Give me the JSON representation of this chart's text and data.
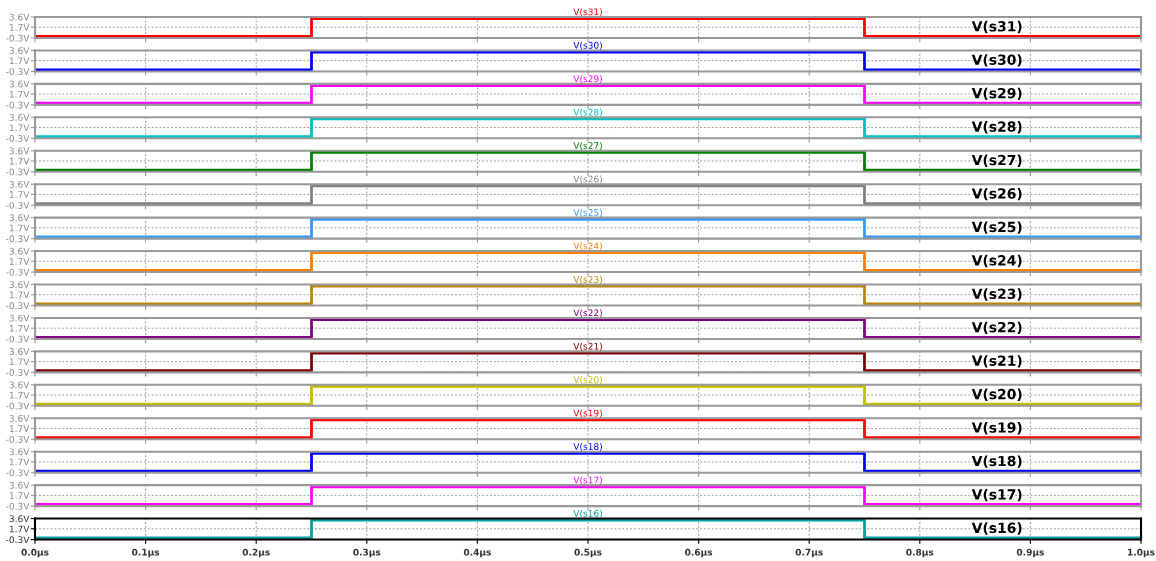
{
  "chart_data": [
    {
      "type": "line",
      "title": "V(s31)",
      "annotations": [
        "V(s31)"
      ],
      "x": [
        0,
        0.25,
        0.25,
        0.75,
        0.75,
        1.0
      ],
      "series": [
        {
          "color": "#ff0000",
          "values": [
            0,
            0,
            3.3,
            3.3,
            0,
            0
          ]
        }
      ],
      "xlim": [
        0,
        1
      ],
      "xticks": [
        {
          "value": 0,
          "label": null
        },
        {
          "value": 0.1,
          "label": null
        },
        {
          "value": 0.2,
          "label": null
        },
        {
          "value": 0.3,
          "label": null
        },
        {
          "value": 0.4,
          "label": null
        },
        {
          "value": 0.5,
          "label": null
        },
        {
          "value": 0.6,
          "label": null
        },
        {
          "value": 0.7,
          "label": null
        },
        {
          "value": 0.8,
          "label": null
        },
        {
          "value": 0.9,
          "label": null
        },
        {
          "value": 1.0,
          "label": null
        }
      ],
      "ylim": [
        -0.3,
        3.6
      ],
      "yticks": [
        {
          "value": -0.3,
          "label": "-0.3V"
        },
        {
          "value": 1.7,
          "label": "1.7V"
        },
        {
          "value": 3.6,
          "label": "3.6V"
        }
      ],
      "grid": true,
      "tick_labels": "y"
    },
    {
      "type": "line",
      "title": "V(s30)",
      "annotations": [
        "V(s30)"
      ],
      "x": [
        0,
        0.25,
        0.25,
        0.75,
        0.75,
        1.0
      ],
      "series": [
        {
          "color": "#0000ff",
          "values": [
            0,
            0,
            3.3,
            3.3,
            0,
            0
          ]
        }
      ],
      "xlim": [
        0,
        1
      ],
      "xticks": [
        {
          "value": 0,
          "label": null
        },
        {
          "value": 0.1,
          "label": null
        },
        {
          "value": 0.2,
          "label": null
        },
        {
          "value": 0.3,
          "label": null
        },
        {
          "value": 0.4,
          "label": null
        },
        {
          "value": 0.5,
          "label": null
        },
        {
          "value": 0.6,
          "label": null
        },
        {
          "value": 0.7,
          "label": null
        },
        {
          "value": 0.8,
          "label": null
        },
        {
          "value": 0.9,
          "label": null
        },
        {
          "value": 1.0,
          "label": null
        }
      ],
      "ylim": [
        -0.3,
        3.6
      ],
      "yticks": [
        {
          "value": -0.3,
          "label": "-0.3V"
        },
        {
          "value": 1.7,
          "label": "1.7V"
        },
        {
          "value": 3.6,
          "label": "3.6V"
        }
      ],
      "grid": true,
      "tick_labels": "y"
    },
    {
      "type": "line",
      "title": "V(s29)",
      "annotations": [
        "V(s29)"
      ],
      "x": [
        0,
        0.25,
        0.25,
        0.75,
        0.75,
        1.0
      ],
      "series": [
        {
          "color": "#ff00ff",
          "values": [
            0,
            0,
            3.3,
            3.3,
            0,
            0
          ]
        }
      ],
      "xlim": [
        0,
        1
      ],
      "xticks": [
        {
          "value": 0,
          "label": null
        },
        {
          "value": 0.1,
          "label": null
        },
        {
          "value": 0.2,
          "label": null
        },
        {
          "value": 0.3,
          "label": null
        },
        {
          "value": 0.4,
          "label": null
        },
        {
          "value": 0.5,
          "label": null
        },
        {
          "value": 0.6,
          "label": null
        },
        {
          "value": 0.7,
          "label": null
        },
        {
          "value": 0.8,
          "label": null
        },
        {
          "value": 0.9,
          "label": null
        },
        {
          "value": 1.0,
          "label": null
        }
      ],
      "ylim": [
        -0.3,
        3.6
      ],
      "yticks": [
        {
          "value": -0.3,
          "label": "-0.3V"
        },
        {
          "value": 1.7,
          "label": "1.7V"
        },
        {
          "value": 3.6,
          "label": "3.6V"
        }
      ],
      "grid": true,
      "tick_labels": "y"
    },
    {
      "type": "line",
      "title": "V(s28)",
      "annotations": [
        "V(s28)"
      ],
      "x": [
        0,
        0.25,
        0.25,
        0.75,
        0.75,
        1.0
      ],
      "series": [
        {
          "color": "#00bfbf",
          "values": [
            0,
            0,
            3.3,
            3.3,
            0,
            0
          ]
        }
      ],
      "xlim": [
        0,
        1
      ],
      "xticks": [
        {
          "value": 0,
          "label": null
        },
        {
          "value": 0.1,
          "label": null
        },
        {
          "value": 0.2,
          "label": null
        },
        {
          "value": 0.3,
          "label": null
        },
        {
          "value": 0.4,
          "label": null
        },
        {
          "value": 0.5,
          "label": null
        },
        {
          "value": 0.6,
          "label": null
        },
        {
          "value": 0.7,
          "label": null
        },
        {
          "value": 0.8,
          "label": null
        },
        {
          "value": 0.9,
          "label": null
        },
        {
          "value": 1.0,
          "label": null
        }
      ],
      "ylim": [
        -0.3,
        3.6
      ],
      "yticks": [
        {
          "value": -0.3,
          "label": "-0.3V"
        },
        {
          "value": 1.7,
          "label": "1.7V"
        },
        {
          "value": 3.6,
          "label": "3.6V"
        }
      ],
      "grid": true,
      "tick_labels": "y"
    },
    {
      "type": "line",
      "title": "V(s27)",
      "annotations": [
        "V(s27)"
      ],
      "x": [
        0,
        0.25,
        0.25,
        0.75,
        0.75,
        1.0
      ],
      "series": [
        {
          "color": "#008000",
          "values": [
            0,
            0,
            3.3,
            3.3,
            0,
            0
          ]
        }
      ],
      "xlim": [
        0,
        1
      ],
      "xticks": [
        {
          "value": 0,
          "label": null
        },
        {
          "value": 0.1,
          "label": null
        },
        {
          "value": 0.2,
          "label": null
        },
        {
          "value": 0.3,
          "label": null
        },
        {
          "value": 0.4,
          "label": null
        },
        {
          "value": 0.5,
          "label": null
        },
        {
          "value": 0.6,
          "label": null
        },
        {
          "value": 0.7,
          "label": null
        },
        {
          "value": 0.8,
          "label": null
        },
        {
          "value": 0.9,
          "label": null
        },
        {
          "value": 1.0,
          "label": null
        }
      ],
      "ylim": [
        -0.3,
        3.6
      ],
      "yticks": [
        {
          "value": -0.3,
          "label": "-0.3V"
        },
        {
          "value": 1.7,
          "label": "1.7V"
        },
        {
          "value": 3.6,
          "label": "3.6V"
        }
      ],
      "grid": true,
      "tick_labels": "y"
    },
    {
      "type": "line",
      "title": "V(s26)",
      "annotations": [
        "V(s26)"
      ],
      "x": [
        0,
        0.25,
        0.25,
        0.75,
        0.75,
        1.0
      ],
      "series": [
        {
          "color": "#808080",
          "values": [
            0,
            0,
            3.3,
            3.3,
            0,
            0
          ]
        }
      ],
      "xlim": [
        0,
        1
      ],
      "xticks": [
        {
          "value": 0,
          "label": null
        },
        {
          "value": 0.1,
          "label": null
        },
        {
          "value": 0.2,
          "label": null
        },
        {
          "value": 0.3,
          "label": null
        },
        {
          "value": 0.4,
          "label": null
        },
        {
          "value": 0.5,
          "label": null
        },
        {
          "value": 0.6,
          "label": null
        },
        {
          "value": 0.7,
          "label": null
        },
        {
          "value": 0.8,
          "label": null
        },
        {
          "value": 0.9,
          "label": null
        },
        {
          "value": 1.0,
          "label": null
        }
      ],
      "ylim": [
        -0.3,
        3.6
      ],
      "yticks": [
        {
          "value": -0.3,
          "label": "-0.3V"
        },
        {
          "value": 1.7,
          "label": "1.7V"
        },
        {
          "value": 3.6,
          "label": "3.6V"
        }
      ],
      "grid": true,
      "tick_labels": "y"
    },
    {
      "type": "line",
      "title": "V(s25)",
      "annotations": [
        "V(s25)"
      ],
      "x": [
        0,
        0.25,
        0.25,
        0.75,
        0.75,
        1.0
      ],
      "series": [
        {
          "color": "#3399ff",
          "values": [
            0,
            0,
            3.3,
            3.3,
            0,
            0
          ]
        }
      ],
      "xlim": [
        0,
        1
      ],
      "xticks": [
        {
          "value": 0,
          "label": null
        },
        {
          "value": 0.1,
          "label": null
        },
        {
          "value": 0.2,
          "label": null
        },
        {
          "value": 0.3,
          "label": null
        },
        {
          "value": 0.4,
          "label": null
        },
        {
          "value": 0.5,
          "label": null
        },
        {
          "value": 0.6,
          "label": null
        },
        {
          "value": 0.7,
          "label": null
        },
        {
          "value": 0.8,
          "label": null
        },
        {
          "value": 0.9,
          "label": null
        },
        {
          "value": 1.0,
          "label": null
        }
      ],
      "ylim": [
        -0.3,
        3.6
      ],
      "yticks": [
        {
          "value": -0.3,
          "label": "-0.3V"
        },
        {
          "value": 1.7,
          "label": "1.7V"
        },
        {
          "value": 3.6,
          "label": "3.6V"
        }
      ],
      "grid": true,
      "tick_labels": "y"
    },
    {
      "type": "line",
      "title": "V(s24)",
      "annotations": [
        "V(s24)"
      ],
      "x": [
        0,
        0.25,
        0.25,
        0.75,
        0.75,
        1.0
      ],
      "series": [
        {
          "color": "#ff8000",
          "values": [
            0,
            0,
            3.3,
            3.3,
            0,
            0
          ]
        }
      ],
      "xlim": [
        0,
        1
      ],
      "xticks": [
        {
          "value": 0,
          "label": null
        },
        {
          "value": 0.1,
          "label": null
        },
        {
          "value": 0.2,
          "label": null
        },
        {
          "value": 0.3,
          "label": null
        },
        {
          "value": 0.4,
          "label": null
        },
        {
          "value": 0.5,
          "label": null
        },
        {
          "value": 0.6,
          "label": null
        },
        {
          "value": 0.7,
          "label": null
        },
        {
          "value": 0.8,
          "label": null
        },
        {
          "value": 0.9,
          "label": null
        },
        {
          "value": 1.0,
          "label": null
        }
      ],
      "ylim": [
        -0.3,
        3.6
      ],
      "yticks": [
        {
          "value": -0.3,
          "label": "-0.3V"
        },
        {
          "value": 1.7,
          "label": "1.7V"
        },
        {
          "value": 3.6,
          "label": "3.6V"
        }
      ],
      "grid": true,
      "tick_labels": "y"
    },
    {
      "type": "line",
      "title": "V(s23)",
      "annotations": [
        "V(s23)"
      ],
      "x": [
        0,
        0.25,
        0.25,
        0.75,
        0.75,
        1.0
      ],
      "series": [
        {
          "color": "#b8860b",
          "values": [
            0,
            0,
            3.3,
            3.3,
            0,
            0
          ]
        }
      ],
      "xlim": [
        0,
        1
      ],
      "xticks": [
        {
          "value": 0,
          "label": null
        },
        {
          "value": 0.1,
          "label": null
        },
        {
          "value": 0.2,
          "label": null
        },
        {
          "value": 0.3,
          "label": null
        },
        {
          "value": 0.4,
          "label": null
        },
        {
          "value": 0.5,
          "label": null
        },
        {
          "value": 0.6,
          "label": null
        },
        {
          "value": 0.7,
          "label": null
        },
        {
          "value": 0.8,
          "label": null
        },
        {
          "value": 0.9,
          "label": null
        },
        {
          "value": 1.0,
          "label": null
        }
      ],
      "ylim": [
        -0.3,
        3.6
      ],
      "yticks": [
        {
          "value": -0.3,
          "label": "-0.3V"
        },
        {
          "value": 1.7,
          "label": "1.7V"
        },
        {
          "value": 3.6,
          "label": "3.6V"
        }
      ],
      "grid": true,
      "tick_labels": "y"
    },
    {
      "type": "line",
      "title": "V(s22)",
      "annotations": [
        "V(s22)"
      ],
      "x": [
        0,
        0.25,
        0.25,
        0.75,
        0.75,
        1.0
      ],
      "series": [
        {
          "color": "#800080",
          "values": [
            0,
            0,
            3.3,
            3.3,
            0,
            0
          ]
        }
      ],
      "xlim": [
        0,
        1
      ],
      "xticks": [
        {
          "value": 0,
          "label": null
        },
        {
          "value": 0.1,
          "label": null
        },
        {
          "value": 0.2,
          "label": null
        },
        {
          "value": 0.3,
          "label": null
        },
        {
          "value": 0.4,
          "label": null
        },
        {
          "value": 0.5,
          "label": null
        },
        {
          "value": 0.6,
          "label": null
        },
        {
          "value": 0.7,
          "label": null
        },
        {
          "value": 0.8,
          "label": null
        },
        {
          "value": 0.9,
          "label": null
        },
        {
          "value": 1.0,
          "label": null
        }
      ],
      "ylim": [
        -0.3,
        3.6
      ],
      "yticks": [
        {
          "value": -0.3,
          "label": "-0.3V"
        },
        {
          "value": 1.7,
          "label": "1.7V"
        },
        {
          "value": 3.6,
          "label": "3.6V"
        }
      ],
      "grid": true,
      "tick_labels": "y"
    },
    {
      "type": "line",
      "title": "V(s21)",
      "annotations": [
        "V(s21)"
      ],
      "x": [
        0,
        0.25,
        0.25,
        0.75,
        0.75,
        1.0
      ],
      "series": [
        {
          "color": "#800000",
          "values": [
            0,
            0,
            3.3,
            3.3,
            0,
            0
          ]
        }
      ],
      "xlim": [
        0,
        1
      ],
      "xticks": [
        {
          "value": 0,
          "label": null
        },
        {
          "value": 0.1,
          "label": null
        },
        {
          "value": 0.2,
          "label": null
        },
        {
          "value": 0.3,
          "label": null
        },
        {
          "value": 0.4,
          "label": null
        },
        {
          "value": 0.5,
          "label": null
        },
        {
          "value": 0.6,
          "label": null
        },
        {
          "value": 0.7,
          "label": null
        },
        {
          "value": 0.8,
          "label": null
        },
        {
          "value": 0.9,
          "label": null
        },
        {
          "value": 1.0,
          "label": null
        }
      ],
      "ylim": [
        -0.3,
        3.6
      ],
      "yticks": [
        {
          "value": -0.3,
          "label": "-0.3V"
        },
        {
          "value": 1.7,
          "label": "1.7V"
        },
        {
          "value": 3.6,
          "label": "3.6V"
        }
      ],
      "grid": true,
      "tick_labels": "y"
    },
    {
      "type": "line",
      "title": "V(s20)",
      "annotations": [
        "V(s20)"
      ],
      "x": [
        0,
        0.25,
        0.25,
        0.75,
        0.75,
        1.0
      ],
      "series": [
        {
          "color": "#bfbf00",
          "values": [
            0,
            0,
            3.3,
            3.3,
            0,
            0
          ]
        }
      ],
      "xlim": [
        0,
        1
      ],
      "xticks": [
        {
          "value": 0,
          "label": null
        },
        {
          "value": 0.1,
          "label": null
        },
        {
          "value": 0.2,
          "label": null
        },
        {
          "value": 0.3,
          "label": null
        },
        {
          "value": 0.4,
          "label": null
        },
        {
          "value": 0.5,
          "label": null
        },
        {
          "value": 0.6,
          "label": null
        },
        {
          "value": 0.7,
          "label": null
        },
        {
          "value": 0.8,
          "label": null
        },
        {
          "value": 0.9,
          "label": null
        },
        {
          "value": 1.0,
          "label": null
        }
      ],
      "ylim": [
        -0.3,
        3.6
      ],
      "yticks": [
        {
          "value": -0.3,
          "label": "-0.3V"
        },
        {
          "value": 1.7,
          "label": "1.7V"
        },
        {
          "value": 3.6,
          "label": "3.6V"
        }
      ],
      "grid": true,
      "tick_labels": "y"
    },
    {
      "type": "line",
      "title": "V(s19)",
      "annotations": [
        "V(s19)"
      ],
      "x": [
        0,
        0.25,
        0.25,
        0.75,
        0.75,
        1.0
      ],
      "series": [
        {
          "color": "#ff0000",
          "values": [
            0,
            0,
            3.3,
            3.3,
            0,
            0
          ]
        }
      ],
      "xlim": [
        0,
        1
      ],
      "xticks": [
        {
          "value": 0,
          "label": null
        },
        {
          "value": 0.1,
          "label": null
        },
        {
          "value": 0.2,
          "label": null
        },
        {
          "value": 0.3,
          "label": null
        },
        {
          "value": 0.4,
          "label": null
        },
        {
          "value": 0.5,
          "label": null
        },
        {
          "value": 0.6,
          "label": null
        },
        {
          "value": 0.7,
          "label": null
        },
        {
          "value": 0.8,
          "label": null
        },
        {
          "value": 0.9,
          "label": null
        },
        {
          "value": 1.0,
          "label": null
        }
      ],
      "ylim": [
        -0.3,
        3.6
      ],
      "yticks": [
        {
          "value": -0.3,
          "label": "-0.3V"
        },
        {
          "value": 1.7,
          "label": "1.7V"
        },
        {
          "value": 3.6,
          "label": "3.6V"
        }
      ],
      "grid": true,
      "tick_labels": "y"
    },
    {
      "type": "line",
      "title": "V(s18)",
      "annotations": [
        "V(s18)"
      ],
      "x": [
        0,
        0.25,
        0.25,
        0.75,
        0.75,
        1.0
      ],
      "series": [
        {
          "color": "#0000ff",
          "values": [
            0,
            0,
            3.3,
            3.3,
            0,
            0
          ]
        }
      ],
      "xlim": [
        0,
        1
      ],
      "xticks": [
        {
          "value": 0,
          "label": null
        },
        {
          "value": 0.1,
          "label": null
        },
        {
          "value": 0.2,
          "label": null
        },
        {
          "value": 0.3,
          "label": null
        },
        {
          "value": 0.4,
          "label": null
        },
        {
          "value": 0.5,
          "label": null
        },
        {
          "value": 0.6,
          "label": null
        },
        {
          "value": 0.7,
          "label": null
        },
        {
          "value": 0.8,
          "label": null
        },
        {
          "value": 0.9,
          "label": null
        },
        {
          "value": 1.0,
          "label": null
        }
      ],
      "ylim": [
        -0.3,
        3.6
      ],
      "yticks": [
        {
          "value": -0.3,
          "label": "-0.3V"
        },
        {
          "value": 1.7,
          "label": "1.7V"
        },
        {
          "value": 3.6,
          "label": "3.6V"
        }
      ],
      "grid": true,
      "tick_labels": "y"
    },
    {
      "type": "line",
      "title": "V(s17)",
      "annotations": [
        "V(s17)"
      ],
      "x": [
        0,
        0.25,
        0.25,
        0.75,
        0.75,
        1.0
      ],
      "series": [
        {
          "color": "#ff00ff",
          "values": [
            0,
            0,
            3.3,
            3.3,
            0,
            0
          ]
        }
      ],
      "xlim": [
        0,
        1
      ],
      "xticks": [
        {
          "value": 0,
          "label": null
        },
        {
          "value": 0.1,
          "label": null
        },
        {
          "value": 0.2,
          "label": null
        },
        {
          "value": 0.3,
          "label": null
        },
        {
          "value": 0.4,
          "label": null
        },
        {
          "value": 0.5,
          "label": null
        },
        {
          "value": 0.6,
          "label": null
        },
        {
          "value": 0.7,
          "label": null
        },
        {
          "value": 0.8,
          "label": null
        },
        {
          "value": 0.9,
          "label": null
        },
        {
          "value": 1.0,
          "label": null
        }
      ],
      "ylim": [
        -0.3,
        3.6
      ],
      "yticks": [
        {
          "value": -0.3,
          "label": "-0.3V"
        },
        {
          "value": 1.7,
          "label": "1.7V"
        },
        {
          "value": 3.6,
          "label": "3.6V"
        }
      ],
      "grid": true,
      "tick_labels": "y"
    },
    {
      "type": "line",
      "title": "V(s16)",
      "annotations": [
        "V(s16)"
      ],
      "x": [
        0,
        0.25,
        0.25,
        0.75,
        0.75,
        1.0
      ],
      "series": [
        {
          "color": "#00a0a0",
          "values": [
            0,
            0,
            3.3,
            3.3,
            0,
            0
          ]
        }
      ],
      "xlim": [
        0,
        1
      ],
      "xticks": [
        {
          "value": 0,
          "label": "0.0µs"
        },
        {
          "value": 0.1,
          "label": "0.1µs"
        },
        {
          "value": 0.2,
          "label": "0.2µs"
        },
        {
          "value": 0.3,
          "label": "0.3µs"
        },
        {
          "value": 0.4,
          "label": "0.4µs"
        },
        {
          "value": 0.5,
          "label": "0.5µs"
        },
        {
          "value": 0.6,
          "label": "0.6µs"
        },
        {
          "value": 0.7,
          "label": "0.7µs"
        },
        {
          "value": 0.8,
          "label": "0.8µs"
        },
        {
          "value": 0.9,
          "label": "0.9µs"
        },
        {
          "value": 1.0,
          "label": "1.0µs"
        }
      ],
      "ylim": [
        -0.3,
        3.6
      ],
      "yticks": [
        {
          "value": -0.3,
          "label": "-0.3V"
        },
        {
          "value": 1.7,
          "label": "1.7V"
        },
        {
          "value": 3.6,
          "label": "3.6V"
        }
      ],
      "grid": true
    }
  ]
}
